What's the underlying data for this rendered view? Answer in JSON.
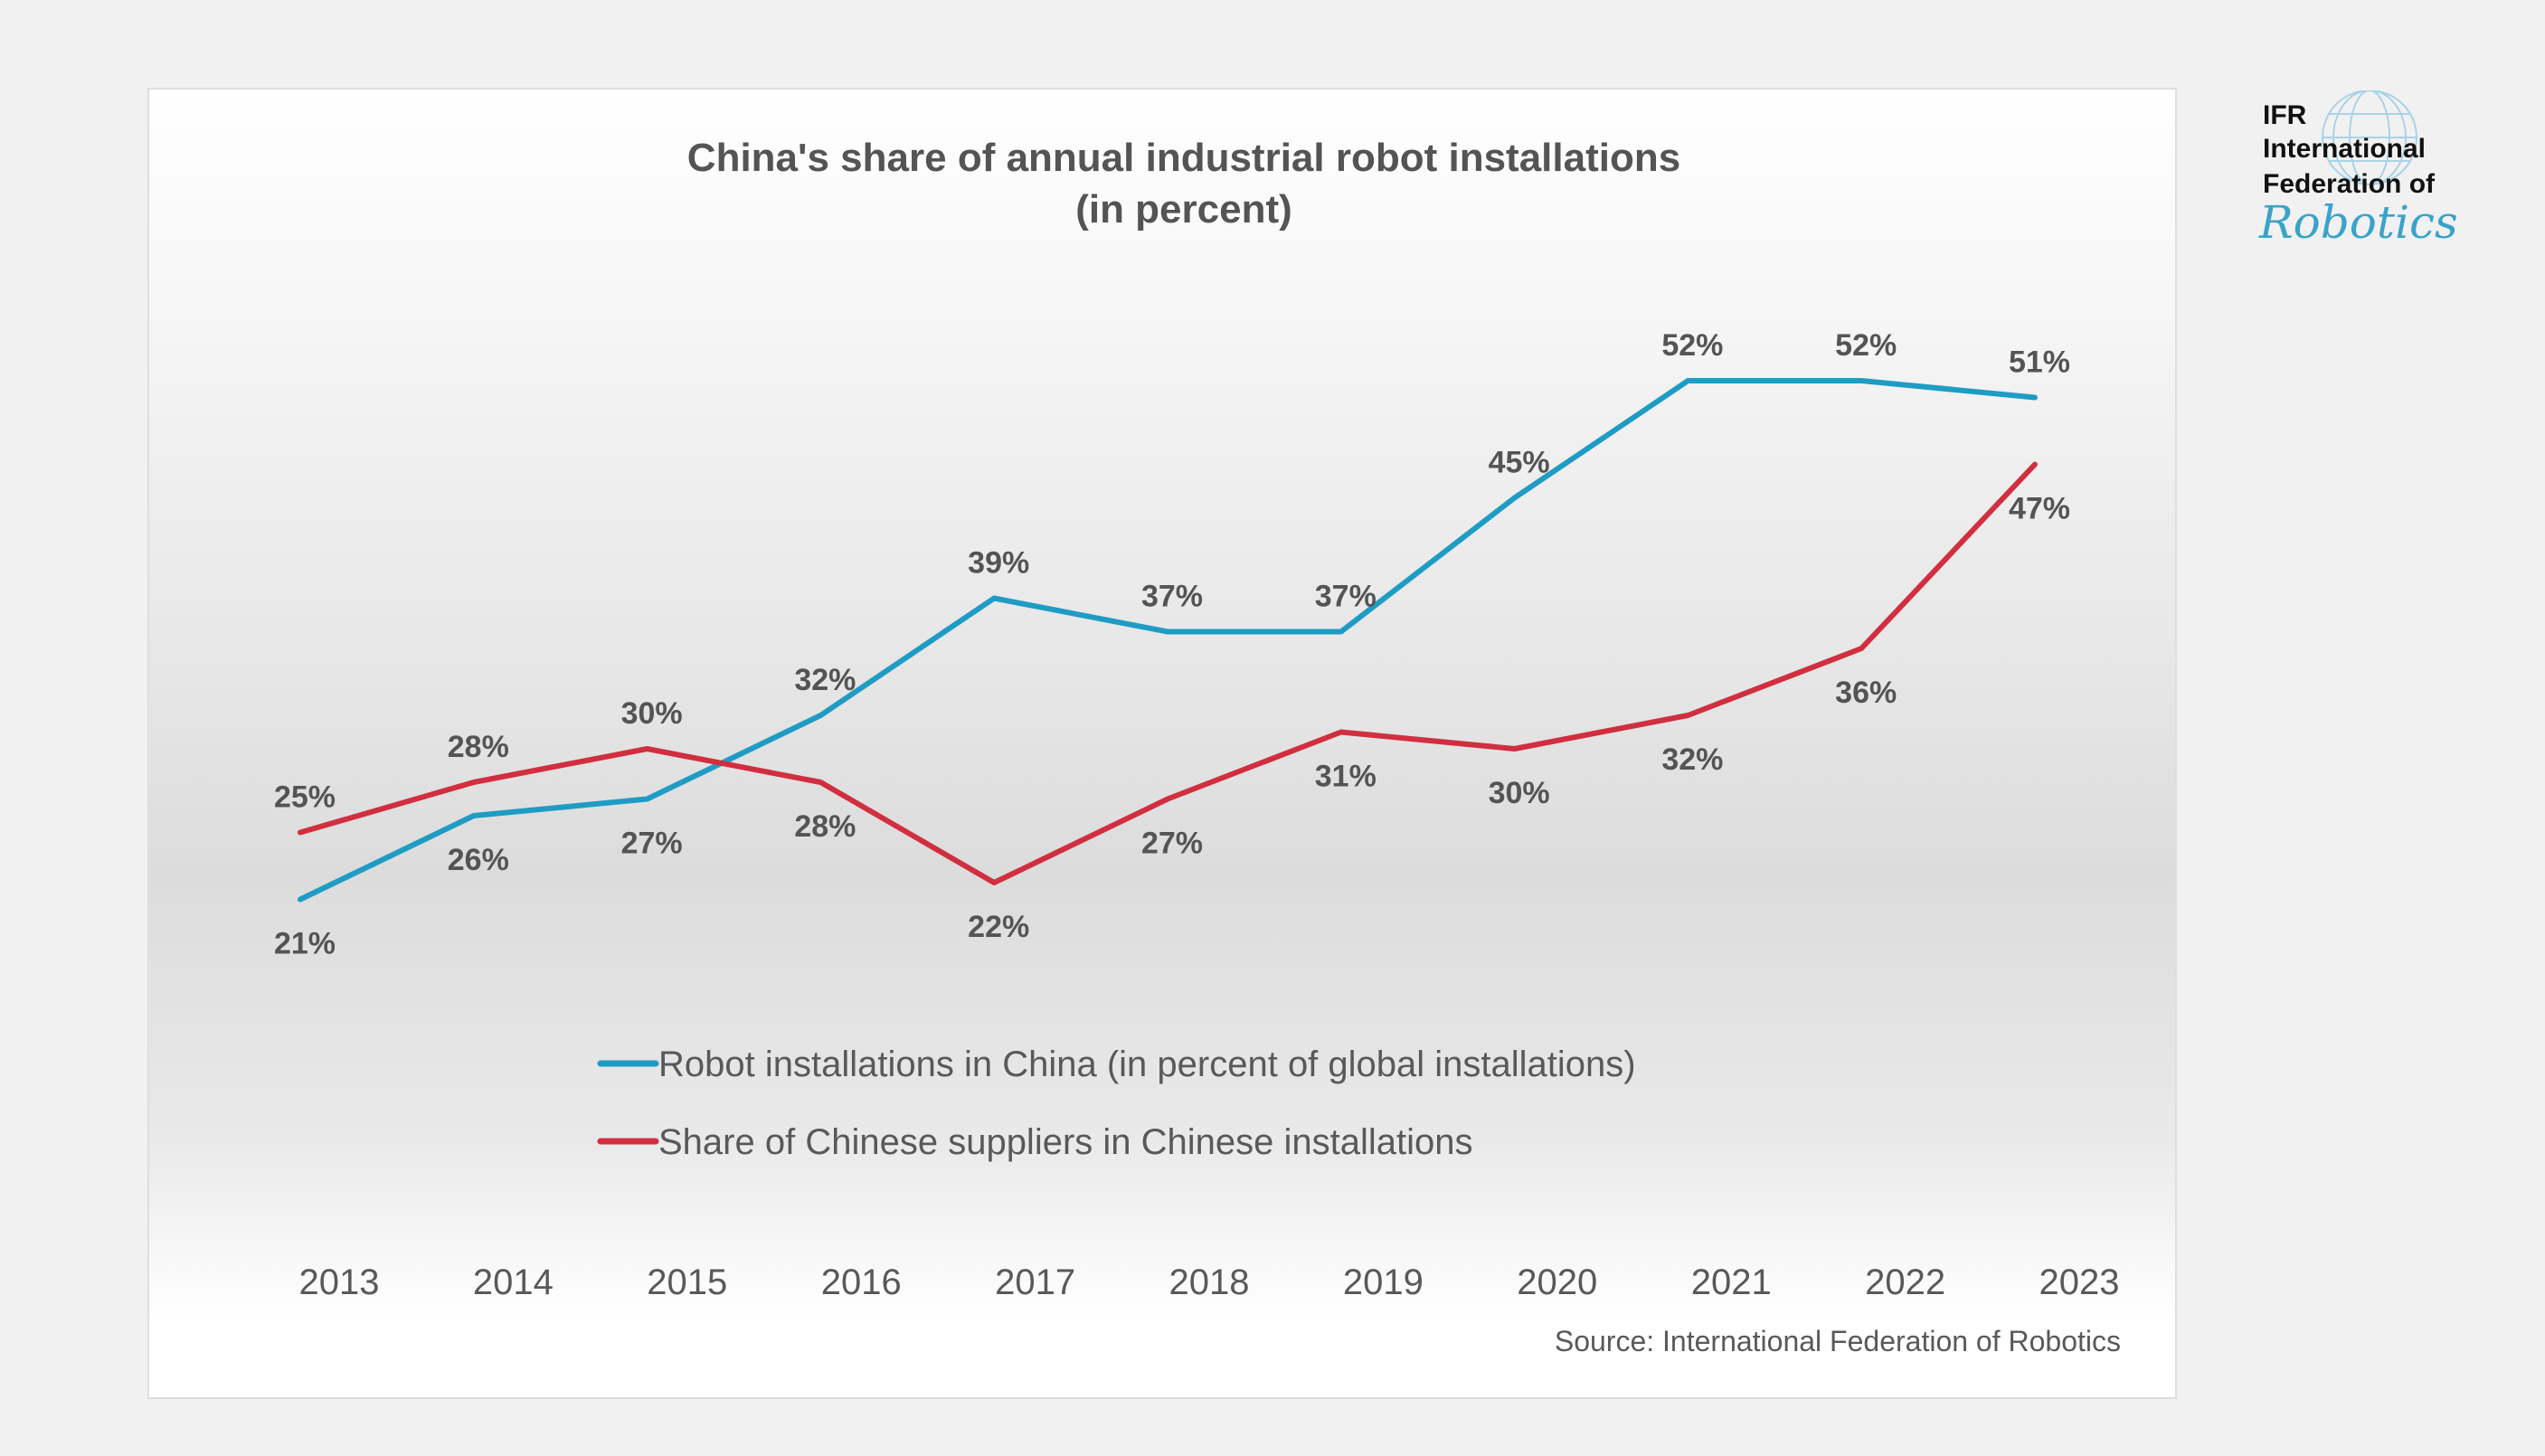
{
  "logo": {
    "line1": "IFR",
    "line2": "International",
    "line3": "Federation of",
    "script": "Robotics",
    "globe_color": "#a9d3e6",
    "script_color": "#3aa3c9"
  },
  "chart_data": {
    "type": "line",
    "title": "China's share of annual industrial robot installations",
    "subtitle": "(in percent)",
    "xlabel": "",
    "ylabel": "",
    "x": [
      "2013",
      "2014",
      "2015",
      "2016",
      "2017",
      "2018",
      "2019",
      "2020",
      "2021",
      "2022",
      "2023"
    ],
    "ylim": [
      0,
      60
    ],
    "grid": false,
    "y_axis_visible": false,
    "series": [
      {
        "name": "Robot installations in China (in percent of global installations)",
        "color": "#1f9cc4",
        "values": [
          21,
          26,
          27,
          32,
          39,
          37,
          37,
          45,
          52,
          52,
          51
        ],
        "labels": [
          "21%",
          "26%",
          "27%",
          "32%",
          "39%",
          "37%",
          "37%",
          "45%",
          "52%",
          "52%",
          "51%"
        ],
        "label_positions": [
          "below",
          "below",
          "below",
          "above",
          "above",
          "above",
          "above",
          "above",
          "above",
          "above",
          "above"
        ]
      },
      {
        "name": "Share of Chinese suppliers in Chinese installations",
        "color": "#d12f3f",
        "values": [
          25,
          28,
          30,
          28,
          22,
          27,
          31,
          30,
          32,
          36,
          47
        ],
        "labels": [
          "25%",
          "28%",
          "30%",
          "28%",
          "22%",
          "27%",
          "31%",
          "30%",
          "32%",
          "36%",
          "47%"
        ],
        "label_positions": [
          "above",
          "above",
          "above",
          "below",
          "below",
          "below",
          "below",
          "below",
          "below",
          "below",
          "below"
        ]
      }
    ],
    "legend_position": "bottom-center",
    "source": "Source: International Federation of Robotics"
  }
}
